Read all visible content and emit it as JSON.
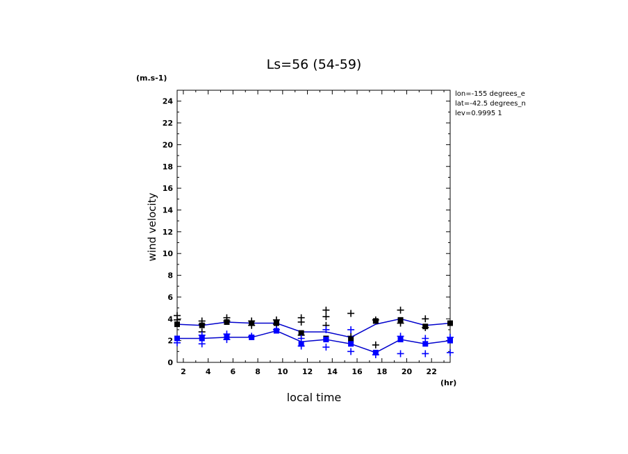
{
  "chart_data": {
    "type": "line",
    "title": "Ls=56 (54-59)",
    "xlabel": "local time",
    "ylabel": "wind velocity",
    "x_unit": "(hr)",
    "y_unit": "(m.s-1)",
    "xlim": [
      1.5,
      23.5
    ],
    "ylim": [
      0,
      25
    ],
    "x_ticks": [
      2,
      4,
      6,
      8,
      10,
      12,
      14,
      16,
      18,
      20,
      22
    ],
    "y_ticks": [
      0,
      2,
      4,
      6,
      8,
      10,
      12,
      14,
      16,
      18,
      20,
      22,
      24
    ],
    "grid": false,
    "info": [
      "lon=-155 degrees_e",
      "lat=-42.5 degrees_n",
      "lev=0.9995 1"
    ],
    "series": [
      {
        "color": "#000000",
        "line_color": "#0000cc",
        "x": [
          1.5,
          3.5,
          5.5,
          7.5,
          9.5,
          11.5,
          13.5,
          15.5,
          17.5,
          19.5,
          21.5,
          23.5
        ],
        "mean": [
          3.5,
          3.4,
          3.7,
          3.6,
          3.6,
          2.8,
          2.8,
          2.3,
          3.5,
          4.0,
          3.4,
          3.6
        ],
        "markers": [
          3.5,
          3.4,
          3.7,
          3.6,
          3.6,
          2.7,
          2.2,
          2.1,
          3.8,
          3.9,
          3.3,
          3.6
        ],
        "samples_x": [
          1.5,
          1.5,
          3.5,
          3.5,
          3.5,
          5.5,
          5.5,
          7.5,
          7.5,
          9.5,
          9.5,
          11.5,
          11.5,
          11.5,
          13.5,
          13.5,
          13.5,
          15.5,
          15.5,
          17.5,
          17.5,
          19.5,
          19.5,
          21.5,
          21.5
        ],
        "samples_y": [
          4.3,
          3.9,
          3.8,
          3.5,
          2.8,
          4.1,
          3.8,
          3.8,
          3.4,
          3.9,
          3.5,
          4.1,
          3.7,
          2.5,
          4.8,
          4.2,
          3.4,
          4.5,
          2.4,
          3.9,
          1.6,
          4.8,
          3.6,
          4.0,
          3.2
        ]
      },
      {
        "color": "#0000ff",
        "line_color": "#0000cc",
        "x": [
          1.5,
          3.5,
          5.5,
          7.5,
          9.5,
          11.5,
          13.5,
          15.5,
          17.5,
          19.5,
          21.5,
          23.5
        ],
        "mean": [
          2.2,
          2.2,
          2.3,
          2.3,
          2.9,
          1.9,
          2.1,
          1.7,
          0.9,
          2.1,
          1.7,
          2.0
        ],
        "markers": [
          2.2,
          2.2,
          2.3,
          2.3,
          2.9,
          1.7,
          2.1,
          1.7,
          0.9,
          2.1,
          1.7,
          2.0
        ],
        "samples_x": [
          1.5,
          3.5,
          3.5,
          5.5,
          5.5,
          7.5,
          9.5,
          11.5,
          11.5,
          13.5,
          13.5,
          15.5,
          15.5,
          17.5,
          19.5,
          19.5,
          21.5,
          21.5,
          23.5,
          23.5
        ],
        "samples_y": [
          1.8,
          2.5,
          1.7,
          2.6,
          2.1,
          2.4,
          3.0,
          2.2,
          1.5,
          3.0,
          1.4,
          3.0,
          1.0,
          0.7,
          2.4,
          0.8,
          2.2,
          0.8,
          2.3,
          0.9
        ]
      }
    ]
  }
}
